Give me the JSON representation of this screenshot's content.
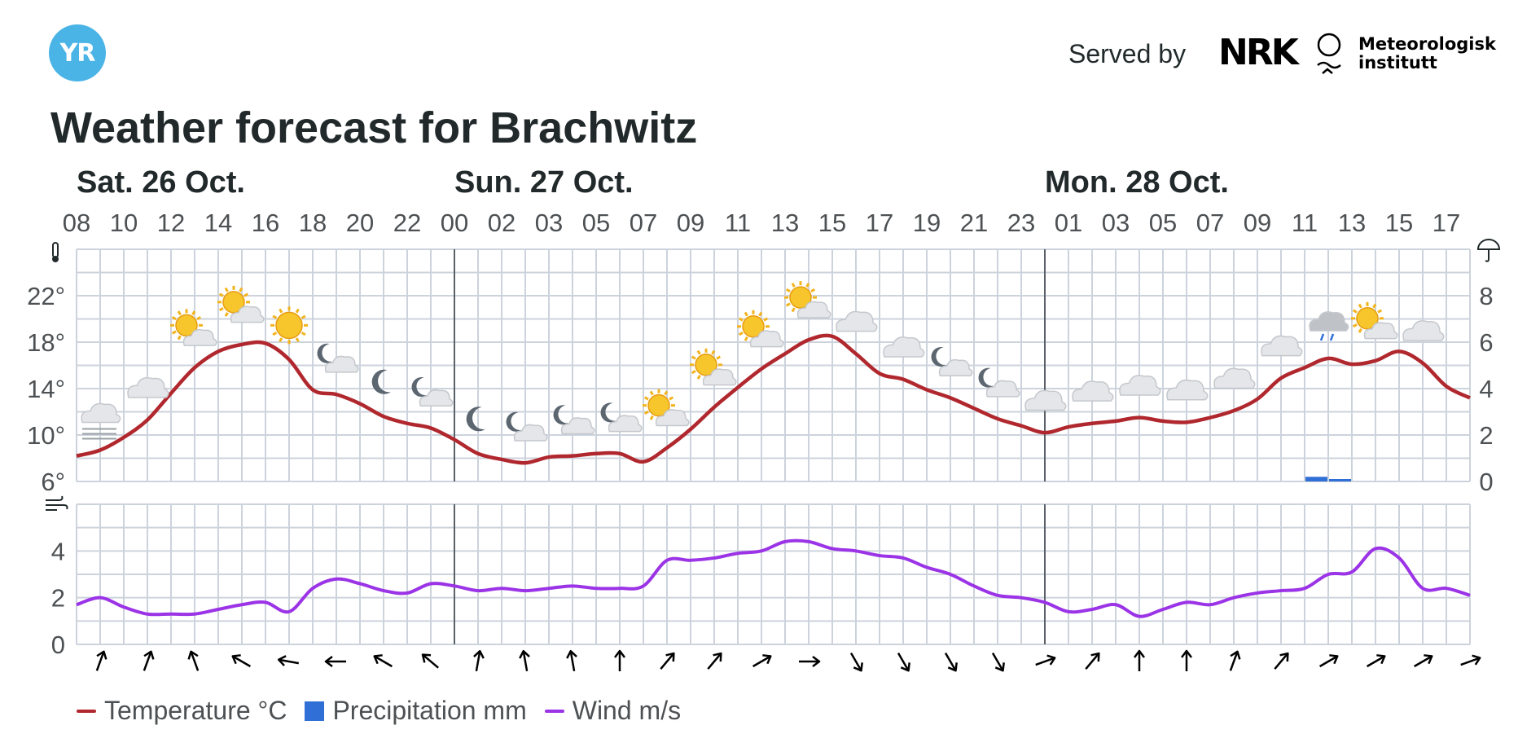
{
  "header": {
    "logo_text": "YR",
    "served_by": "Served by",
    "nrk_text": "NRK",
    "met_line1": "Meteorologisk",
    "met_line2": "institutt",
    "title": "Weather forecast for Brachwitz"
  },
  "colors": {
    "temperature": "#b0282e",
    "precipitation": "#2f6fd6",
    "wind": "#9b33e6",
    "grid": "#cdd3dc",
    "day_separator": "#5a6068",
    "logo": "#4bb4e6"
  },
  "legend": [
    {
      "label": "Temperature °C",
      "kind": "line",
      "color": "#b0282e"
    },
    {
      "label": "Precipitation mm",
      "kind": "box",
      "color": "#2f6fd6"
    },
    {
      "label": "Wind m/s",
      "kind": "line",
      "color": "#9b33e6"
    }
  ],
  "chart_data": {
    "type": "line",
    "days": [
      {
        "label": "Sat. 26 Oct.",
        "start_index": 0
      },
      {
        "label": "Sun. 27 Oct.",
        "start_index": 16
      },
      {
        "label": "Mon. 28 Oct.",
        "start_index": 41
      }
    ],
    "hours": [
      "08",
      "09",
      "10",
      "11",
      "12",
      "13",
      "14",
      "15",
      "16",
      "17",
      "18",
      "19",
      "20",
      "21",
      "22",
      "23",
      "00",
      "01",
      "02",
      "02",
      "03",
      "04",
      "05",
      "06",
      "07",
      "08",
      "09",
      "10",
      "11",
      "12",
      "13",
      "14",
      "15",
      "16",
      "17",
      "18",
      "19",
      "20",
      "21",
      "22",
      "23",
      "00",
      "01",
      "02",
      "03",
      "04",
      "05",
      "06",
      "07",
      "08",
      "09",
      "10",
      "11",
      "12",
      "13",
      "14",
      "15",
      "16",
      "17",
      "18"
    ],
    "hour_tick_labels": [
      "08",
      "10",
      "12",
      "14",
      "16",
      "18",
      "20",
      "22",
      "00",
      "02",
      "03",
      "05",
      "07",
      "09",
      "11",
      "13",
      "15",
      "17",
      "19",
      "21",
      "23",
      "01",
      "03",
      "05",
      "07",
      "09",
      "11",
      "13",
      "15",
      "17"
    ],
    "temperature": {
      "name": "Temperature °C",
      "ylim": [
        6,
        26
      ],
      "ticks": [
        6,
        10,
        14,
        18,
        22
      ],
      "tick_labels": [
        "6°",
        "10°",
        "14°",
        "18°",
        "22°"
      ],
      "values": [
        8.2,
        8.7,
        9.8,
        11.3,
        13.6,
        15.8,
        17.2,
        17.8,
        17.9,
        16.5,
        13.9,
        13.5,
        12.7,
        11.6,
        11.0,
        10.6,
        9.6,
        8.4,
        7.9,
        7.6,
        8.1,
        8.2,
        8.4,
        8.4,
        7.7,
        8.9,
        10.5,
        12.4,
        14.1,
        15.7,
        17.0,
        18.2,
        18.5,
        17.0,
        15.3,
        14.8,
        13.9,
        13.2,
        12.3,
        11.4,
        10.8,
        10.2,
        10.7,
        11.0,
        11.2,
        11.5,
        11.2,
        11.1,
        11.5,
        12.1,
        13.1,
        14.9,
        15.8,
        16.6,
        16.1,
        16.4,
        17.2,
        16.2,
        14.2,
        13.2
      ]
    },
    "precipitation": {
      "name": "Precipitation mm",
      "ylim": [
        0,
        10
      ],
      "ticks": [
        0,
        2,
        4,
        6,
        8
      ],
      "tick_labels": [
        "0",
        "2",
        "4",
        "6",
        "8"
      ],
      "bars": [
        {
          "index": 52,
          "value": 0.2
        },
        {
          "index": 53,
          "value": 0.1
        }
      ]
    },
    "wind": {
      "name": "Wind m/s",
      "ylim": [
        0,
        6
      ],
      "ticks": [
        0,
        2,
        4
      ],
      "tick_labels": [
        "0",
        "2",
        "4"
      ],
      "values": [
        1.7,
        2.0,
        1.6,
        1.3,
        1.3,
        1.3,
        1.5,
        1.7,
        1.8,
        1.4,
        2.4,
        2.8,
        2.6,
        2.3,
        2.2,
        2.6,
        2.5,
        2.3,
        2.4,
        2.3,
        2.4,
        2.5,
        2.4,
        2.4,
        2.5,
        3.6,
        3.6,
        3.7,
        3.9,
        4.0,
        4.4,
        4.4,
        4.1,
        4.0,
        3.8,
        3.7,
        3.3,
        3.0,
        2.5,
        2.1,
        2.0,
        1.8,
        1.4,
        1.5,
        1.7,
        1.2,
        1.5,
        1.8,
        1.7,
        2.0,
        2.2,
        2.3,
        2.4,
        3.0,
        3.1,
        4.1,
        3.7,
        2.4,
        2.4,
        2.1
      ]
    },
    "wind_direction_degrees": [
      20,
      20,
      340,
      300,
      280,
      270,
      300,
      310,
      10,
      350,
      350,
      0,
      40,
      40,
      60,
      90,
      150,
      150,
      150,
      150,
      70,
      40,
      0,
      0,
      20,
      40,
      60,
      60,
      60,
      70
    ],
    "weather_symbols": [
      {
        "index": 1,
        "icon": "fog-icon"
      },
      {
        "index": 3,
        "icon": "cloud-icon"
      },
      {
        "index": 5,
        "icon": "partly-cloudy-day-icon"
      },
      {
        "index": 7,
        "icon": "partly-cloudy-day-icon"
      },
      {
        "index": 9,
        "icon": "sun-icon"
      },
      {
        "index": 11,
        "icon": "partly-cloudy-night-icon"
      },
      {
        "index": 13,
        "icon": "moon-icon"
      },
      {
        "index": 15,
        "icon": "partly-cloudy-night-icon"
      },
      {
        "index": 17,
        "icon": "moon-icon"
      },
      {
        "index": 19,
        "icon": "partly-cloudy-night-icon"
      },
      {
        "index": 21,
        "icon": "partly-cloudy-night-icon"
      },
      {
        "index": 23,
        "icon": "partly-cloudy-night-icon"
      },
      {
        "index": 25,
        "icon": "partly-cloudy-day-icon"
      },
      {
        "index": 27,
        "icon": "partly-cloudy-day-icon"
      },
      {
        "index": 29,
        "icon": "partly-cloudy-day-icon"
      },
      {
        "index": 31,
        "icon": "partly-cloudy-day-icon"
      },
      {
        "index": 33,
        "icon": "cloud-icon"
      },
      {
        "index": 35,
        "icon": "cloud-icon"
      },
      {
        "index": 37,
        "icon": "partly-cloudy-night-icon"
      },
      {
        "index": 39,
        "icon": "partly-cloudy-night-icon"
      },
      {
        "index": 41,
        "icon": "cloud-icon"
      },
      {
        "index": 43,
        "icon": "cloud-icon"
      },
      {
        "index": 45,
        "icon": "cloud-icon"
      },
      {
        "index": 47,
        "icon": "cloud-icon"
      },
      {
        "index": 49,
        "icon": "cloud-icon"
      },
      {
        "index": 51,
        "icon": "cloud-icon"
      },
      {
        "index": 53,
        "icon": "cloud-rain-icon"
      },
      {
        "index": 55,
        "icon": "partly-cloudy-day-icon"
      },
      {
        "index": 57,
        "icon": "cloud-icon"
      }
    ],
    "grid": true,
    "legend_position": "bottom-left"
  }
}
